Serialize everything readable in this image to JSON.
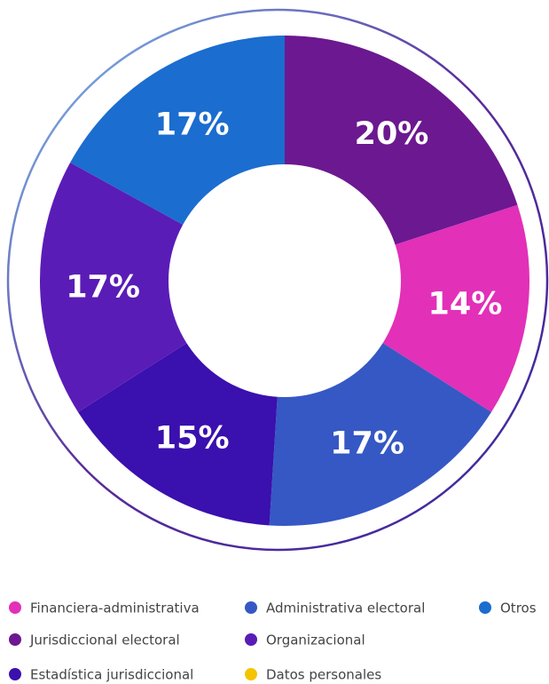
{
  "chart_data": {
    "type": "pie",
    "donut": true,
    "categories": [
      "Jurisdiccional electoral",
      "Financiera-administrativa",
      "Administrativa electoral",
      "Estadística jurisdiccional",
      "Organizacional",
      "Otros",
      "Datos personales"
    ],
    "values": [
      20,
      14,
      17,
      15,
      17,
      17,
      0
    ],
    "value_labels": [
      "20%",
      "14%",
      "17%",
      "15%",
      "17%",
      "17%",
      null
    ],
    "colors": [
      "#6c1890",
      "#e230b8",
      "#3558c4",
      "#3a10ae",
      "#5a1cb6",
      "#1b6dcf",
      "#f5c400"
    ]
  }
}
